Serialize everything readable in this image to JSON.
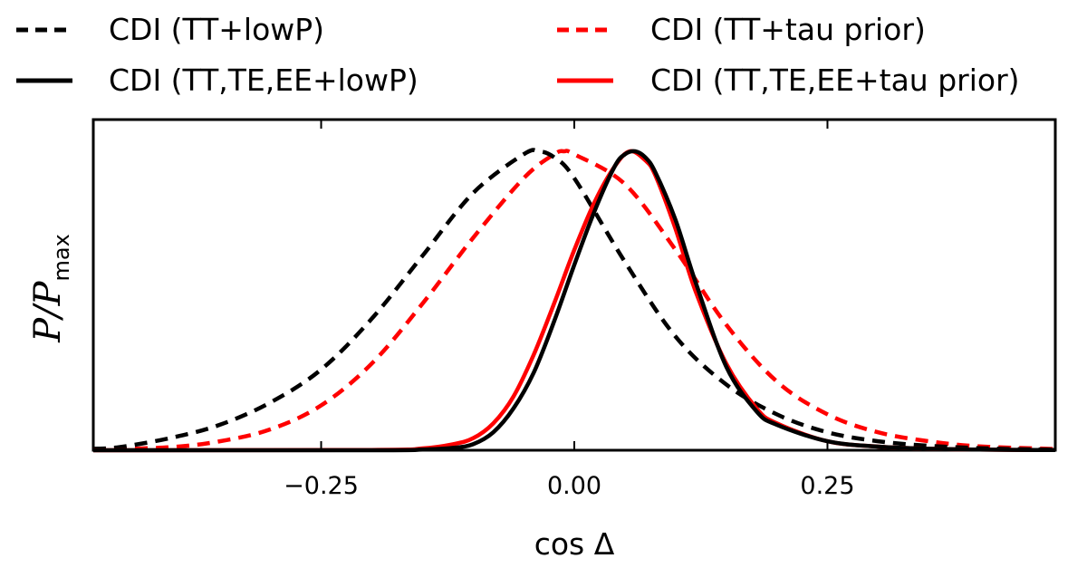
{
  "chart_data": {
    "type": "line",
    "title": "",
    "xlabel": "cos Δ",
    "ylabel": "P/P",
    "ylabel_subscript": "max",
    "xlim": [
      -0.475,
      0.475
    ],
    "ylim": [
      0,
      1.0
    ],
    "xticks": [
      -0.25,
      0.0,
      0.25
    ],
    "xtick_labels": [
      "−0.25",
      "0.00",
      "0.25"
    ],
    "grid": false,
    "legend_position": "top",
    "series": [
      {
        "name": "CDI (TT+lowP)",
        "color": "#000000",
        "style": "dashed",
        "x": [
          -0.475,
          -0.45,
          -0.4,
          -0.35,
          -0.3,
          -0.25,
          -0.2,
          -0.15,
          -0.1,
          -0.05,
          -0.035,
          -0.02,
          0.0,
          0.05,
          0.1,
          0.15,
          0.2,
          0.25,
          0.3,
          0.35,
          0.4,
          0.45,
          0.475
        ],
        "y": [
          0.005,
          0.01,
          0.04,
          0.085,
          0.16,
          0.27,
          0.44,
          0.65,
          0.86,
          0.99,
          1.0,
          0.98,
          0.91,
          0.63,
          0.38,
          0.22,
          0.12,
          0.06,
          0.03,
          0.015,
          0.007,
          0.003,
          0.002
        ]
      },
      {
        "name": "CDI (TT,TE,EE+lowP)",
        "color": "#000000",
        "style": "solid",
        "x": [
          -0.475,
          -0.2,
          -0.15,
          -0.12,
          -0.1,
          -0.08,
          -0.06,
          -0.04,
          -0.02,
          0.0,
          0.02,
          0.04,
          0.05,
          0.06,
          0.07,
          0.08,
          0.1,
          0.12,
          0.15,
          0.18,
          0.2,
          0.25,
          0.3,
          0.35,
          0.4,
          0.475
        ],
        "y": [
          0,
          0,
          0.002,
          0.008,
          0.02,
          0.06,
          0.14,
          0.26,
          0.43,
          0.62,
          0.8,
          0.95,
          0.99,
          1.0,
          0.98,
          0.93,
          0.77,
          0.56,
          0.28,
          0.13,
          0.085,
          0.03,
          0.012,
          0.005,
          0.002,
          0.0005
        ]
      },
      {
        "name": "CDI (TT+tau prior)",
        "color": "#ff0000",
        "style": "dashed",
        "x": [
          -0.475,
          -0.4,
          -0.35,
          -0.3,
          -0.25,
          -0.2,
          -0.15,
          -0.1,
          -0.05,
          -0.02,
          -0.01,
          0.0,
          0.05,
          0.1,
          0.15,
          0.2,
          0.25,
          0.3,
          0.35,
          0.4,
          0.475
        ],
        "y": [
          0.002,
          0.01,
          0.03,
          0.07,
          0.15,
          0.29,
          0.49,
          0.71,
          0.91,
          0.99,
          1.0,
          0.99,
          0.89,
          0.67,
          0.42,
          0.23,
          0.12,
          0.06,
          0.03,
          0.013,
          0.004
        ]
      },
      {
        "name": "CDI (TT,TE,EE+tau prior)",
        "color": "#ff0000",
        "style": "solid",
        "x": [
          -0.475,
          -0.2,
          -0.15,
          -0.12,
          -0.1,
          -0.08,
          -0.06,
          -0.04,
          -0.02,
          0.0,
          0.02,
          0.04,
          0.055,
          0.07,
          0.08,
          0.1,
          0.12,
          0.15,
          0.18,
          0.2,
          0.25,
          0.3,
          0.35,
          0.4,
          0.475
        ],
        "y": [
          0,
          0.001,
          0.006,
          0.02,
          0.04,
          0.09,
          0.18,
          0.32,
          0.49,
          0.67,
          0.83,
          0.95,
          1.0,
          0.97,
          0.92,
          0.74,
          0.53,
          0.29,
          0.14,
          0.09,
          0.03,
          0.012,
          0.005,
          0.002,
          0.0005
        ]
      }
    ]
  }
}
